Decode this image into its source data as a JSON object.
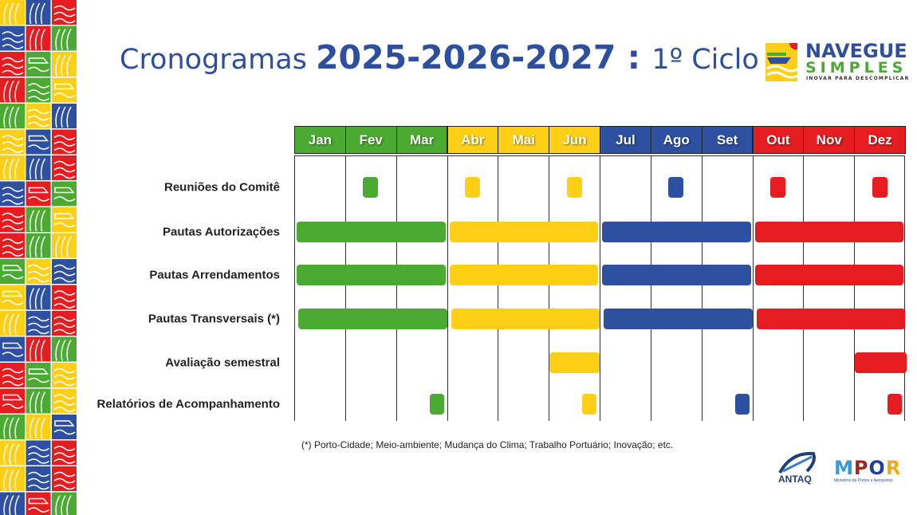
{
  "colors": {
    "green": "#4aaa31",
    "yellow": "#fdd017",
    "blue": "#2e50a0",
    "red": "#e51d20",
    "title": "#2e4f9e"
  },
  "title": {
    "part1": "Cronogramas ",
    "years": "2025-2026-2027",
    "sep": " : ",
    "cycle": "1º Ciclo"
  },
  "logo": {
    "line1": "NAVEGUE",
    "line2": "SIMPLES",
    "tagline": "INOVAR PARA DESCOMPLICAR"
  },
  "months": [
    {
      "label": "Jan",
      "color": "green"
    },
    {
      "label": "Fev",
      "color": "green"
    },
    {
      "label": "Mar",
      "color": "green"
    },
    {
      "label": "Abr",
      "color": "yellow"
    },
    {
      "label": "Mai",
      "color": "yellow"
    },
    {
      "label": "Jun",
      "color": "yellow"
    },
    {
      "label": "Jul",
      "color": "blue"
    },
    {
      "label": "Ago",
      "color": "blue"
    },
    {
      "label": "Set",
      "color": "blue"
    },
    {
      "label": "Out",
      "color": "red"
    },
    {
      "label": "Nov",
      "color": "red"
    },
    {
      "label": "Dez",
      "color": "red"
    }
  ],
  "rows": [
    {
      "label": "Reuniões do Comitê",
      "type": "meeting",
      "months": [
        2,
        4,
        6,
        8,
        10,
        12
      ]
    },
    {
      "label": "Pautas Autorizações",
      "type": "quarters",
      "months": [
        1,
        4,
        7,
        10
      ]
    },
    {
      "label": "Pautas Arrendamentos",
      "type": "quarters",
      "months": [
        1,
        4,
        7,
        10
      ]
    },
    {
      "label": "Pautas Transversais (*)",
      "type": "quarters",
      "months": [
        1,
        4,
        7,
        10
      ]
    },
    {
      "label": "Avaliação semestral",
      "type": "month",
      "months": [
        6,
        12
      ]
    },
    {
      "label": "Relatórios de Acompanhamento",
      "type": "report",
      "months": [
        3,
        6,
        9,
        12
      ]
    }
  ],
  "footnote": "(*) Porto-Cidade; Meio-ambiente; Mudança do Clima; Trabalho Portuário; Inovação; etc.",
  "footer": {
    "antaq": "ANTAQ",
    "mpor_caption": "Ministério de Portos e Aeroportos",
    "mpor_letters": "MPOR"
  }
}
